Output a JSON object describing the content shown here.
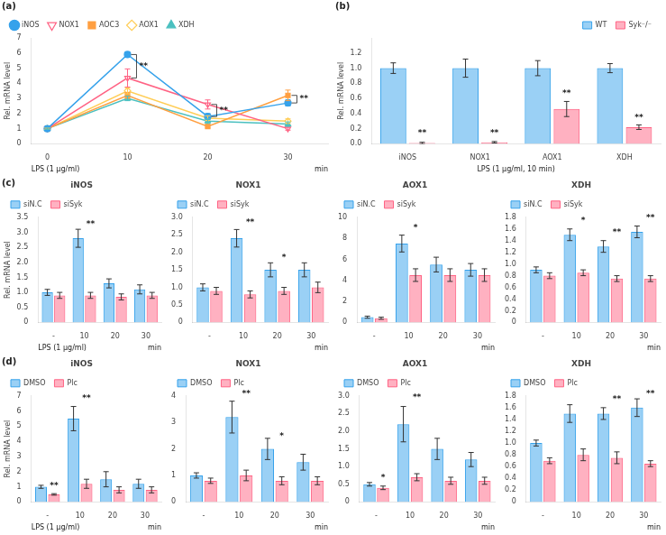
{
  "chart_data": [
    {
      "type": "line",
      "panel": "(a)",
      "ylabel": "Rel. mRNA level",
      "xlabel": "LPS (1 μg/ml)",
      "xunit": "min",
      "x": [
        0,
        10,
        20,
        30
      ],
      "xlim": [
        -2,
        35
      ],
      "xticks": [
        0,
        10,
        20,
        30
      ],
      "ylim": [
        0,
        7
      ],
      "yticks": [
        0,
        1,
        2,
        3,
        4,
        5,
        6,
        7
      ],
      "grid": false,
      "legend": "upper left",
      "series": [
        {
          "name": "iNOS",
          "values": [
            1.0,
            5.9,
            1.8,
            2.7
          ],
          "err": [
            0.05,
            0.15,
            0.2,
            0.2
          ],
          "marker": "circle"
        },
        {
          "name": "NOX1",
          "values": [
            1.0,
            4.35,
            2.6,
            1.0
          ],
          "err": [
            0.05,
            0.6,
            0.3,
            0.1
          ],
          "marker": "triangle-down-open"
        },
        {
          "name": "AOC3",
          "values": [
            1.0,
            3.2,
            1.15,
            3.2
          ],
          "err": [
            0.05,
            0.2,
            0.1,
            0.35
          ],
          "marker": "square"
        },
        {
          "name": "AOX1",
          "values": [
            1.0,
            3.5,
            1.7,
            1.5
          ],
          "err": [
            0.05,
            0.2,
            0.15,
            0.15
          ],
          "marker": "diamond-open"
        },
        {
          "name": "XDH",
          "values": [
            1.0,
            3.0,
            1.5,
            1.3
          ],
          "err": [
            0.05,
            0.15,
            0.15,
            0.15
          ],
          "marker": "triangle-up"
        }
      ],
      "annotations": [
        {
          "text": "**",
          "x": 10,
          "series": [
            "iNOS",
            "NOX1"
          ]
        },
        {
          "text": "**",
          "x": 20,
          "series": [
            "NOX1",
            "iNOS"
          ]
        },
        {
          "text": "**",
          "x": 30,
          "series": [
            "AOC3",
            "iNOS"
          ]
        }
      ]
    },
    {
      "type": "bar",
      "panel": "(b)",
      "ylabel": "Rel. mRNA level",
      "xlabel": "LPS (1 μg/ml, 10 min)",
      "categories": [
        "iNOS",
        "NOX1",
        "AOX1",
        "XDH"
      ],
      "ylim": [
        0,
        1.4
      ],
      "yticks": [
        {
          "value": 0,
          "label": "0.0"
        },
        0.2,
        0.4,
        0.6,
        0.8,
        {
          "value": 1.0,
          "label": "1.0"
        },
        1.2
      ],
      "grid": false,
      "legend": "upper right",
      "series": [
        {
          "name": "WT",
          "values": [
            1.0,
            1.0,
            1.0,
            1.0
          ],
          "err": [
            0.07,
            0.12,
            0.1,
            0.06
          ]
        },
        {
          "name": "Syk⁻/⁻",
          "values": [
            0.01,
            0.02,
            0.46,
            0.22
          ],
          "err": [
            0.01,
            0.01,
            0.1,
            0.03
          ]
        }
      ],
      "annotations": [
        {
          "text": "**",
          "category": "iNOS",
          "series": "Syk⁻/⁻",
          "y": 0.07
        },
        {
          "text": "**",
          "category": "NOX1",
          "series": "Syk⁻/⁻",
          "y": 0.07
        },
        {
          "text": "**",
          "category": "AOX1",
          "series": "Syk⁻/⁻",
          "y": 0.6
        },
        {
          "text": "**",
          "category": "XDH",
          "series": "Syk⁻/⁻",
          "y": 0.28
        }
      ]
    },
    {
      "type": "bar",
      "panel": "(c)",
      "title": "iNOS",
      "ylabel": "Rel. mRNA level",
      "xlabel": "LPS (1 μg/ml)",
      "xunit": "min",
      "categories": [
        "-",
        "10",
        "20",
        "30"
      ],
      "ylim": [
        0,
        3.5
      ],
      "yticks": [
        0,
        0.5,
        {
          "value": 1.0,
          "label": "1.0"
        },
        1.5,
        {
          "value": 2.0,
          "label": "2.0"
        },
        2.5,
        {
          "value": 3.0,
          "label": "3.0"
        },
        3.5
      ],
      "grid": false,
      "legend": "upper left",
      "series": [
        {
          "name": "siN.C",
          "values": [
            1.0,
            2.8,
            1.3,
            1.1
          ],
          "err": [
            0.1,
            0.3,
            0.15,
            0.15
          ]
        },
        {
          "name": "siSyk",
          "values": [
            0.9,
            0.9,
            0.85,
            0.9
          ],
          "err": [
            0.1,
            0.1,
            0.1,
            0.1
          ]
        }
      ],
      "annotations": [
        {
          "text": "**",
          "category": "10",
          "series": "siSyk",
          "y": 3.1
        }
      ]
    },
    {
      "type": "bar",
      "title": "NOX1",
      "xunit": "min",
      "categories": [
        "-",
        "10",
        "20",
        "30"
      ],
      "ylim": [
        0,
        3.0
      ],
      "yticks": [
        0,
        0.5,
        {
          "value": 1.0,
          "label": "1.0"
        },
        1.5,
        {
          "value": 2.0,
          "label": "2.0"
        },
        2.5,
        {
          "value": 3.0,
          "label": "3.0"
        }
      ],
      "grid": false,
      "legend": "upper left",
      "series": [
        {
          "name": "siN.C",
          "values": [
            1.0,
            2.4,
            1.5,
            1.5
          ],
          "err": [
            0.1,
            0.25,
            0.2,
            0.2
          ]
        },
        {
          "name": "siSyk",
          "values": [
            0.9,
            0.8,
            0.9,
            1.0
          ],
          "err": [
            0.1,
            0.1,
            0.1,
            0.15
          ]
        }
      ],
      "annotations": [
        {
          "text": "**",
          "category": "10",
          "series": "siSyk",
          "y": 2.7
        },
        {
          "text": "*",
          "category": "20",
          "series": "siSyk",
          "y": 1.7
        }
      ]
    },
    {
      "type": "bar",
      "title": "AOX1",
      "xunit": "min",
      "categories": [
        "-",
        "10",
        "20",
        "30"
      ],
      "ylim": [
        0,
        10
      ],
      "yticks": [
        0,
        2,
        4,
        6,
        8,
        10
      ],
      "grid": false,
      "legend": "upper left",
      "series": [
        {
          "name": "siN.C",
          "values": [
            0.5,
            7.5,
            5.5,
            5.0
          ],
          "err": [
            0.1,
            0.8,
            0.7,
            0.6
          ]
        },
        {
          "name": "siSyk",
          "values": [
            0.4,
            4.5,
            4.5,
            4.5
          ],
          "err": [
            0.1,
            0.6,
            0.6,
            0.6
          ]
        }
      ],
      "annotations": [
        {
          "text": "*",
          "category": "10",
          "series": "siSyk",
          "y": 8.5
        }
      ]
    },
    {
      "type": "bar",
      "title": "XDH",
      "xunit": "min",
      "categories": [
        "-",
        "10",
        "20",
        "30"
      ],
      "ylim": [
        0,
        1.8
      ],
      "yticks": [
        0,
        0.2,
        0.4,
        0.6,
        0.8,
        {
          "value": 1.0,
          "label": "1.0"
        },
        1.2,
        1.4,
        1.6,
        1.8
      ],
      "grid": false,
      "legend": "upper left",
      "series": [
        {
          "name": "siN.C",
          "values": [
            0.9,
            1.5,
            1.3,
            1.55
          ],
          "err": [
            0.05,
            0.1,
            0.1,
            0.1
          ]
        },
        {
          "name": "siSyk",
          "values": [
            0.8,
            0.85,
            0.75,
            0.75
          ],
          "err": [
            0.05,
            0.05,
            0.05,
            0.05
          ]
        }
      ],
      "annotations": [
        {
          "text": "*",
          "category": "10",
          "series": "siSyk",
          "y": 1.65
        },
        {
          "text": "**",
          "category": "20",
          "series": "siSyk",
          "y": 1.45
        },
        {
          "text": "**",
          "category": "30",
          "series": "siSyk",
          "y": 1.7
        }
      ]
    },
    {
      "type": "bar",
      "panel": "(d)",
      "title": "iNOS",
      "ylabel": "Rel. mRNA level",
      "xlabel": "LPS (1 μg/ml)",
      "xunit": "min",
      "categories": [
        "-",
        "10",
        "20",
        "30"
      ],
      "ylim": [
        0,
        7
      ],
      "yticks": [
        0,
        1,
        2,
        3,
        4,
        5,
        6,
        7
      ],
      "grid": false,
      "legend": "upper left",
      "series": [
        {
          "name": "DMSO",
          "values": [
            1.0,
            5.5,
            1.5,
            1.2
          ],
          "err": [
            0.1,
            0.8,
            0.5,
            0.3
          ]
        },
        {
          "name": "Plc",
          "values": [
            0.5,
            1.2,
            0.8,
            0.8
          ],
          "err": [
            0.05,
            0.3,
            0.2,
            0.2
          ]
        }
      ],
      "annotations": [
        {
          "text": "**",
          "category": "-",
          "series": "Plc",
          "y": 0.7
        },
        {
          "text": "**",
          "category": "10",
          "series": "Plc",
          "y": 6.5
        }
      ]
    },
    {
      "type": "bar",
      "title": "NOX1",
      "xunit": "min",
      "categories": [
        "-",
        "10",
        "20",
        "30"
      ],
      "ylim": [
        0,
        4
      ],
      "yticks": [
        0,
        1,
        2,
        3,
        4
      ],
      "grid": false,
      "legend": "upper left",
      "series": [
        {
          "name": "DMSO",
          "values": [
            1.0,
            3.2,
            2.0,
            1.5
          ],
          "err": [
            0.1,
            0.6,
            0.4,
            0.3
          ]
        },
        {
          "name": "Plc",
          "values": [
            0.8,
            1.0,
            0.8,
            0.8
          ],
          "err": [
            0.1,
            0.2,
            0.15,
            0.15
          ]
        }
      ],
      "annotations": [
        {
          "text": "**",
          "category": "10",
          "series": "Plc",
          "y": 3.9
        },
        {
          "text": "*",
          "category": "20",
          "series": "Plc",
          "y": 2.3
        }
      ]
    },
    {
      "type": "bar",
      "title": "AOX1",
      "xunit": "min",
      "categories": [
        "-",
        "10",
        "20",
        "30"
      ],
      "ylim": [
        0,
        3.0
      ],
      "yticks": [
        0,
        0.5,
        {
          "value": 1.0,
          "label": "1.0"
        },
        1.5,
        {
          "value": 2.0,
          "label": "2.0"
        },
        2.5,
        {
          "value": 3.0,
          "label": "3.0"
        }
      ],
      "grid": false,
      "legend": "upper left",
      "series": [
        {
          "name": "DMSO",
          "values": [
            0.5,
            2.2,
            1.5,
            1.2
          ],
          "err": [
            0.05,
            0.5,
            0.3,
            0.2
          ]
        },
        {
          "name": "Plc",
          "values": [
            0.4,
            0.7,
            0.6,
            0.6
          ],
          "err": [
            0.05,
            0.1,
            0.1,
            0.1
          ]
        }
      ],
      "annotations": [
        {
          "text": "*",
          "category": "-",
          "series": "Plc",
          "y": 0.55
        },
        {
          "text": "**",
          "category": "10",
          "series": "Plc",
          "y": 2.8
        }
      ]
    },
    {
      "type": "bar",
      "title": "XDH",
      "xunit": "min",
      "categories": [
        "-",
        "10",
        "20",
        "30"
      ],
      "ylim": [
        0,
        1.8
      ],
      "yticks": [
        0,
        0.2,
        0.4,
        0.6,
        0.8,
        {
          "value": 1.0,
          "label": "1.0"
        },
        1.2,
        1.4,
        1.6,
        1.8
      ],
      "grid": false,
      "legend": "upper left",
      "series": [
        {
          "name": "DMSO",
          "values": [
            1.0,
            1.5,
            1.5,
            1.6
          ],
          "err": [
            0.05,
            0.15,
            0.1,
            0.15
          ]
        },
        {
          "name": "Plc",
          "values": [
            0.7,
            0.8,
            0.75,
            0.65
          ],
          "err": [
            0.05,
            0.1,
            0.1,
            0.05
          ]
        }
      ],
      "annotations": [
        {
          "text": "**",
          "category": "20",
          "series": "Plc",
          "y": 1.65
        },
        {
          "text": "**",
          "category": "30",
          "series": "Plc",
          "y": 1.75
        }
      ]
    }
  ]
}
